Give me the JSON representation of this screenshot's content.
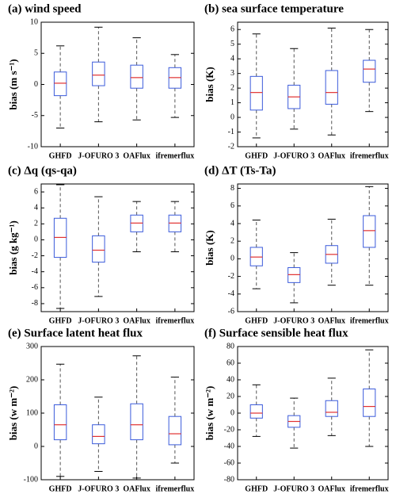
{
  "chart_data": [
    {
      "type": "box",
      "title": "(a) wind speed",
      "ylabel": "bias (m s⁻¹)",
      "categories": [
        "GHFD",
        "J-OFURO 3",
        "OAFlux",
        "ifremerflux"
      ],
      "low": [
        -7,
        -6,
        -5.7,
        -5.3
      ],
      "q1": [
        -1.8,
        -0.2,
        -0.6,
        -0.6
      ],
      "median": [
        0.2,
        1.5,
        1.1,
        1.1
      ],
      "q3": [
        2,
        3.6,
        3.1,
        2.7
      ],
      "high": [
        6.2,
        9.2,
        7.5,
        4.8
      ],
      "ylim": [
        -10,
        10
      ],
      "yticks": [
        -10,
        -5,
        0,
        5,
        10
      ],
      "box_color": "#3b5bdb",
      "median_color": "#e03131",
      "whisker_color": "#555555"
    },
    {
      "type": "box",
      "title": "(b) sea surface temperature",
      "ylabel": "bias (K)",
      "categories": [
        "GHFD",
        "J-OFURO 3",
        "OAFlux",
        "ifremerflux"
      ],
      "low": [
        -1.4,
        -0.8,
        -1.2,
        0.4
      ],
      "q1": [
        0.5,
        0.6,
        0.9,
        2.4
      ],
      "median": [
        1.7,
        1.4,
        1.7,
        3.3
      ],
      "q3": [
        2.8,
        2.2,
        3.2,
        3.9
      ],
      "high": [
        5.7,
        4.7,
        6.1,
        6
      ],
      "ylim": [
        -2,
        6.5
      ],
      "yticks": [
        -2,
        -1,
        0,
        1,
        2,
        3,
        4,
        5,
        6
      ],
      "box_color": "#3b5bdb",
      "median_color": "#e03131",
      "whisker_color": "#555555"
    },
    {
      "type": "box",
      "title": "(c) Δq (qs-qa)",
      "ylabel": "bias (g kg⁻¹)",
      "categories": [
        "GHFD",
        "J-OFURO 3",
        "OAFlux",
        "ifremerflux"
      ],
      "low": [
        -8.6,
        -7.1,
        -1.5,
        -1.5
      ],
      "q1": [
        -2.2,
        -2.8,
        1,
        1
      ],
      "median": [
        0.3,
        -1.3,
        2.1,
        2.1
      ],
      "q3": [
        2.7,
        0.5,
        3.1,
        3.1
      ],
      "high": [
        6.9,
        5.4,
        4.8,
        4.8
      ],
      "ylim": [
        -9,
        7
      ],
      "yticks": [
        -8,
        -6,
        -4,
        -2,
        0,
        2,
        4,
        6
      ],
      "box_color": "#3b5bdb",
      "median_color": "#e03131",
      "whisker_color": "#555555"
    },
    {
      "type": "box",
      "title": "(d) ΔT (Ts-Ta)",
      "ylabel": "bias (K)",
      "categories": [
        "GHFD",
        "J-OFURO 3",
        "OAFlux",
        "ifremerflux"
      ],
      "low": [
        -3.4,
        -5,
        -3,
        -3
      ],
      "q1": [
        -0.8,
        -2.7,
        -0.5,
        1.3
      ],
      "median": [
        0.2,
        -1.8,
        0.5,
        3.2
      ],
      "q3": [
        1.3,
        -1,
        1.5,
        4.9
      ],
      "high": [
        4.4,
        0.7,
        4.5,
        8.2
      ],
      "ylim": [
        -6,
        8.5
      ],
      "yticks": [
        -6,
        -4,
        -2,
        0,
        2,
        4,
        6,
        8
      ],
      "box_color": "#3b5bdb",
      "median_color": "#e03131",
      "whisker_color": "#555555"
    },
    {
      "type": "box",
      "title": "(e) Surface latent heat flux",
      "ylabel": "bias (w m⁻²)",
      "categories": [
        "GHFD",
        "J-OFURO 3",
        "OAFlux",
        "ifremerflux"
      ],
      "low": [
        -90,
        -75,
        -95,
        -50
      ],
      "q1": [
        20,
        8,
        20,
        5
      ],
      "median": [
        65,
        30,
        65,
        38
      ],
      "q3": [
        125,
        65,
        128,
        90
      ],
      "high": [
        247,
        148,
        272,
        208
      ],
      "ylim": [
        -100,
        300
      ],
      "yticks": [
        -100,
        0,
        100,
        200,
        300
      ],
      "box_color": "#3b5bdb",
      "median_color": "#e03131",
      "whisker_color": "#555555"
    },
    {
      "type": "box",
      "title": "(f) Surface sensible heat flux",
      "ylabel": "bias (w m⁻²)",
      "categories": [
        "GHFD",
        "J-OFURO 3",
        "OAFlux",
        "ifremerflux"
      ],
      "low": [
        -28,
        -42,
        -27,
        -40
      ],
      "q1": [
        -6,
        -17,
        -4,
        -4
      ],
      "median": [
        0,
        -10,
        1,
        8
      ],
      "q3": [
        10,
        -3,
        15,
        29
      ],
      "high": [
        34,
        18,
        42,
        76
      ],
      "ylim": [
        -80,
        80
      ],
      "yticks": [
        -80,
        -60,
        -40,
        -20,
        0,
        20,
        40,
        60,
        80
      ],
      "box_color": "#3b5bdb",
      "median_color": "#e03131",
      "whisker_color": "#555555"
    }
  ]
}
